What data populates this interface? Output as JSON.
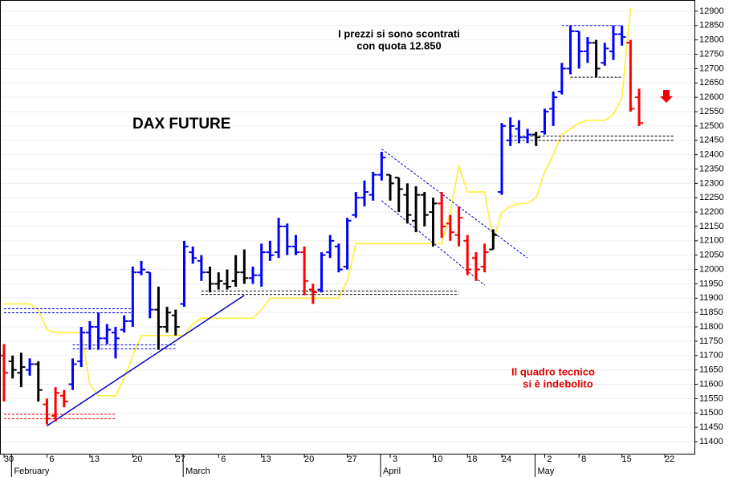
{
  "chart_data": {
    "type": "ohlc",
    "title": "DAX FUTURE",
    "annotations": [
      {
        "text": "I prezzi si sono scontrati",
        "color": "#000000"
      },
      {
        "text": "con quota 12.850",
        "color": "#000000"
      },
      {
        "text": "Il quadro tecnico",
        "color": "#e00000"
      },
      {
        "text": "si è indebolito",
        "color": "#e00000"
      }
    ],
    "categories": [
      "30",
      null,
      null,
      null,
      null,
      "6",
      null,
      null,
      null,
      null,
      "13",
      null,
      null,
      null,
      null,
      "20",
      null,
      null,
      null,
      null,
      "27",
      null,
      null,
      null,
      null,
      "6",
      null,
      null,
      null,
      null,
      "13",
      null,
      null,
      null,
      null,
      "20",
      null,
      null,
      null,
      null,
      "27",
      null,
      null,
      null,
      null,
      "3",
      null,
      null,
      null,
      null,
      "10",
      null,
      null,
      null,
      "18",
      null,
      null,
      null,
      "24",
      null,
      null,
      null,
      null,
      "2",
      null,
      null,
      null,
      "8",
      null,
      null,
      null,
      null,
      "15",
      null,
      null,
      null,
      null,
      "22",
      null,
      null,
      null
    ],
    "months": [
      null,
      null,
      "February",
      null,
      null,
      null,
      null,
      null,
      null,
      null,
      null,
      null,
      null,
      null,
      null,
      null,
      null,
      null,
      null,
      null,
      null,
      null,
      "March",
      null,
      null,
      null,
      null,
      null,
      null,
      null,
      null,
      null,
      null,
      null,
      null,
      null,
      null,
      null,
      null,
      null,
      null,
      null,
      null,
      null,
      null,
      "April",
      null,
      null,
      null,
      null,
      null,
      null,
      null,
      null,
      null,
      null,
      null,
      null,
      null,
      null,
      null,
      null,
      null,
      "May",
      null,
      null,
      null,
      null,
      null,
      null,
      null,
      null,
      null,
      null,
      null,
      null,
      null,
      null,
      null,
      null,
      null
    ],
    "open": [
      11700,
      11680,
      11640,
      11650,
      11670,
      11530,
      11490,
      11560,
      11600,
      11680,
      11780,
      11800,
      11760,
      11780,
      11790,
      11820,
      11990,
      11990,
      11860,
      11800,
      11840,
      11880,
      12060,
      12030,
      11990,
      11950,
      11950,
      11960,
      11990,
      11970,
      11980,
      12060,
      12060,
      12150,
      12080,
      12060,
      11930,
      11930,
      12060,
      12080,
      12010,
      12190,
      12250,
      12260,
      12330,
      12330,
      12320,
      12260,
      12170,
      12260,
      12200,
      12230,
      12160,
      12120,
      12100,
      12040,
      12010,
      12070,
      12270,
      12450,
      12490,
      12460,
      12470,
      12480,
      12560,
      12620,
      12700,
      12830,
      12760,
      12790,
      12720,
      12760,
      12820,
      12790,
      12600,
      null,
      null,
      null,
      null,
      null,
      null
    ],
    "high": [
      11740,
      11700,
      11710,
      11690,
      11680,
      11550,
      11590,
      11580,
      11690,
      11800,
      11820,
      11850,
      11810,
      11800,
      11840,
      12010,
      12030,
      11990,
      11940,
      11870,
      11860,
      12100,
      12080,
      12050,
      12010,
      11990,
      12000,
      12050,
      12070,
      12010,
      12090,
      12100,
      12180,
      12160,
      12120,
      12080,
      11950,
      12060,
      12120,
      12090,
      12180,
      12270,
      12310,
      12340,
      12410,
      12330,
      12320,
      12300,
      12290,
      12270,
      12250,
      12270,
      12190,
      12220,
      12120,
      12060,
      12090,
      12140,
      12510,
      12530,
      12520,
      12490,
      12480,
      12560,
      12620,
      12720,
      12850,
      12830,
      12810,
      12800,
      12790,
      12850,
      12850,
      12800,
      12630,
      null,
      null,
      null,
      null,
      null,
      null
    ],
    "low": [
      11540,
      11620,
      11590,
      11630,
      11540,
      11460,
      11470,
      11520,
      11580,
      11660,
      11720,
      11720,
      11740,
      11690,
      11780,
      11800,
      11980,
      11830,
      11720,
      11780,
      11770,
      11870,
      12020,
      11960,
      11920,
      11930,
      11930,
      11940,
      11950,
      11950,
      11940,
      12030,
      12040,
      12050,
      12050,
      11910,
      11880,
      11920,
      12040,
      11990,
      12000,
      12180,
      12220,
      12240,
      12310,
      12240,
      12200,
      12160,
      12130,
      12150,
      12080,
      12110,
      12100,
      12080,
      11980,
      11960,
      11990,
      12070,
      12260,
      12430,
      12440,
      12440,
      12430,
      12470,
      12500,
      12610,
      12680,
      12700,
      12720,
      12670,
      12710,
      12730,
      12780,
      12550,
      12500,
      null,
      null,
      null,
      null,
      null,
      null
    ],
    "close": [
      11640,
      11650,
      11660,
      11670,
      11580,
      11480,
      11570,
      11540,
      11670,
      11780,
      11800,
      11760,
      11790,
      11760,
      11820,
      11990,
      12000,
      11860,
      11800,
      11850,
      11800,
      12080,
      12040,
      11990,
      11950,
      11960,
      11940,
      11990,
      11970,
      11980,
      12060,
      12050,
      12150,
      12080,
      12060,
      11960,
      11920,
      12050,
      12100,
      12000,
      12170,
      12250,
      12270,
      12330,
      12390,
      12300,
      12280,
      12190,
      12260,
      12190,
      12230,
      12150,
      12130,
      12180,
      12000,
      12000,
      12060,
      12120,
      12500,
      12500,
      12460,
      12470,
      12460,
      12550,
      12600,
      12700,
      12830,
      12760,
      12790,
      12700,
      12770,
      12820,
      12810,
      12560,
      12510,
      null,
      null,
      null,
      null,
      null,
      null
    ],
    "bar_colors": [
      "#ff0000",
      "#000000",
      "#000000",
      "#0000ff",
      "#000000",
      "#ff0000",
      "#ff0000",
      "#ff0000",
      "#0000ff",
      "#0000ff",
      "#0000ff",
      "#0000ff",
      "#0000ff",
      "#0000ff",
      "#0000ff",
      "#0000ff",
      "#0000ff",
      "#0000ff",
      "#000000",
      "#000000",
      "#000000",
      "#0000ff",
      "#0000ff",
      "#0000ff",
      "#000000",
      "#000000",
      "#000000",
      "#000000",
      "#000000",
      "#0000ff",
      "#0000ff",
      "#0000ff",
      "#0000ff",
      "#0000ff",
      "#0000ff",
      "#ff0000",
      "#ff0000",
      "#0000ff",
      "#0000ff",
      "#0000ff",
      "#0000ff",
      "#0000ff",
      "#0000ff",
      "#0000ff",
      "#0000ff",
      "#000000",
      "#000000",
      "#000000",
      "#000000",
      "#000000",
      "#000000",
      "#ff0000",
      "#ff0000",
      "#ff0000",
      "#ff0000",
      "#ff0000",
      "#ff0000",
      "#000000",
      "#0000ff",
      "#0000ff",
      "#0000ff",
      "#0000ff",
      "#000000",
      "#0000ff",
      "#0000ff",
      "#0000ff",
      "#0000ff",
      "#0000ff",
      "#0000ff",
      "#000000",
      "#0000ff",
      "#0000ff",
      "#0000ff",
      "#ff0000",
      "#ff0000",
      null,
      null,
      null,
      null,
      null,
      null
    ],
    "line": {
      "color": "#ffee33",
      "values": [
        11880,
        11880,
        11880,
        11880,
        11860,
        11790,
        11780,
        11780,
        11780,
        11780,
        11600,
        11560,
        11560,
        11560,
        11620,
        11700,
        11770,
        11770,
        11770,
        11770,
        11770,
        11770,
        11810,
        11830,
        11830,
        11830,
        11830,
        11830,
        11830,
        11830,
        11860,
        11900,
        11900,
        11900,
        11900,
        11900,
        11900,
        11900,
        11900,
        11900,
        11960,
        12090,
        12090,
        12090,
        12090,
        12090,
        12090,
        12090,
        12090,
        12090,
        12090,
        12090,
        12200,
        12360,
        12270,
        12270,
        12270,
        12100,
        12200,
        12220,
        12230,
        12230,
        12250,
        12340,
        12400,
        12470,
        12490,
        12510,
        12520,
        12520,
        12520,
        12540,
        12600,
        12910,
        null,
        null,
        null,
        null,
        null,
        null,
        null
      ]
    },
    "segments": [
      {
        "from": [
          0,
          11863
        ],
        "to": [
          15,
          11863
        ],
        "color": "#0000cc",
        "dash": true
      },
      {
        "from": [
          0,
          11849
        ],
        "to": [
          15,
          11849
        ],
        "color": "#0000cc",
        "dash": true
      },
      {
        "from": [
          8,
          11737
        ],
        "to": [
          20,
          11737
        ],
        "color": "#0000cc",
        "dash": true
      },
      {
        "from": [
          8,
          11724
        ],
        "to": [
          20,
          11724
        ],
        "color": "#0000cc",
        "dash": true
      },
      {
        "from": [
          0,
          11495
        ],
        "to": [
          13,
          11495
        ],
        "color": "#dd0000",
        "dash": true
      },
      {
        "from": [
          0,
          11480
        ],
        "to": [
          13,
          11480
        ],
        "color": "#dd0000",
        "dash": true
      },
      {
        "from": [
          23,
          11925
        ],
        "to": [
          53,
          11925
        ],
        "color": "#000000",
        "dash": true
      },
      {
        "from": [
          23,
          11913
        ],
        "to": [
          53,
          11913
        ],
        "color": "#000000",
        "dash": true
      },
      {
        "from": [
          59,
          12465
        ],
        "to": [
          78,
          12465
        ],
        "color": "#000000",
        "dash": true
      },
      {
        "from": [
          59,
          12450
        ],
        "to": [
          78,
          12450
        ],
        "color": "#000000",
        "dash": true
      },
      {
        "from": [
          66,
          12670
        ],
        "to": [
          72,
          12670
        ],
        "color": "#000000",
        "dash": true
      },
      {
        "from": [
          65,
          12850
        ],
        "to": [
          72,
          12850
        ],
        "color": "#0000cc",
        "dash": true
      },
      {
        "from": [
          5,
          11455
        ],
        "to": [
          28,
          11910
        ],
        "color": "#0000cc",
        "dash": false
      },
      {
        "from": [
          44,
          12420
        ],
        "to": [
          61,
          12040
        ],
        "color": "#0000cc",
        "dash": true
      },
      {
        "from": [
          44,
          12240
        ],
        "to": [
          56,
          11945
        ],
        "color": "#0000cc",
        "dash": true
      }
    ],
    "ylim": [
      11358,
      12939
    ],
    "yticks": [
      11400,
      11450,
      11500,
      11550,
      11600,
      11650,
      11700,
      11750,
      11800,
      11850,
      11900,
      11950,
      12000,
      12050,
      12100,
      12150,
      12200,
      12250,
      12300,
      12350,
      12400,
      12450,
      12500,
      12550,
      12600,
      12650,
      12700,
      12750,
      12800,
      12850,
      12900
    ],
    "grid": true
  }
}
